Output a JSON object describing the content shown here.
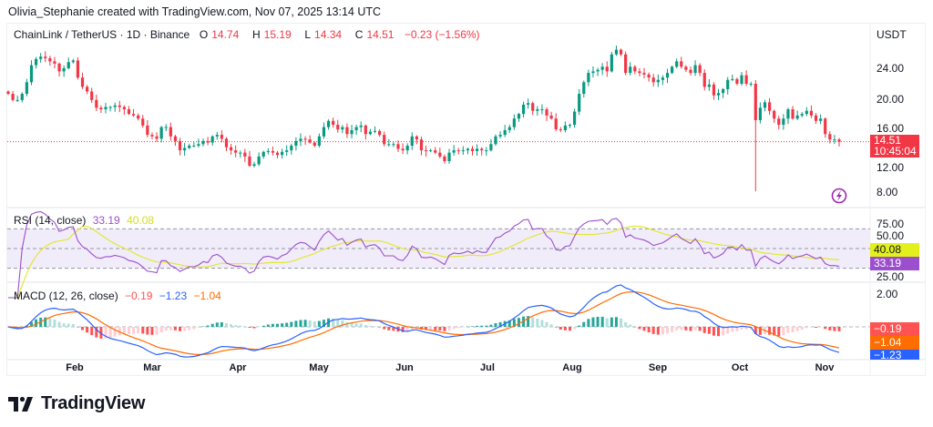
{
  "credit": "Olivia_Stephanie created with TradingView.com, Nov 07, 2025 13:14 UTC",
  "header": {
    "symbol": "ChainLink / TetherUS · 1D · Binance",
    "o_label": "O",
    "o": "14.74",
    "h_label": "H",
    "h": "15.19",
    "l_label": "L",
    "l": "14.34",
    "c_label": "C",
    "c": "14.51",
    "change": "−0.23 (−1.56%)"
  },
  "currency": "USDT",
  "price_tag": {
    "price": "14.51",
    "countdown": "10:45:04"
  },
  "rsi": {
    "label": "RSI (14, close)",
    "value": "33.19",
    "ma": "40.08",
    "ticks": [
      "75.00",
      "50.00",
      "25.00"
    ]
  },
  "macd": {
    "label": "MACD (12, 26, close)",
    "hist": "−0.19",
    "macd": "−1.23",
    "signal": "−1.04",
    "ticks": [
      "2.00"
    ]
  },
  "logo_text": "TradingView",
  "colors": {
    "up": "#089981",
    "down": "#f23645",
    "rsi": "#9c4fcc",
    "rsi_ma": "#e2e832",
    "macd": "#2962ff",
    "signal": "#ff6d00",
    "rsi_band": "#f1ecfa"
  },
  "icons": {
    "alert": "lightning-icon",
    "logo": "tradingview-logo-icon"
  },
  "chart_data": {
    "type": "candlestick",
    "title": "ChainLink / TetherUS · 1D · Binance",
    "x_range": [
      "Jan 10, 2025",
      "Nov 07, 2025"
    ],
    "x_ticks": [
      "Feb",
      "Mar",
      "Apr",
      "May",
      "Jun",
      "Jul",
      "Aug",
      "Sep",
      "Oct",
      "Nov"
    ],
    "y_ticks": [
      "24.00",
      "20.00",
      "16.00",
      "12.00",
      "8.00"
    ],
    "ylim": [
      6.4,
      30.2
    ],
    "grid": false,
    "spike_low": 8.1,
    "closes": [
      20.7,
      19.9,
      19.9,
      20.7,
      22.2,
      24.4,
      25.2,
      25.5,
      25.3,
      24.9,
      24.6,
      23.6,
      24,
      24.8,
      25,
      22.8,
      21.6,
      21,
      19.9,
      18.9,
      18.7,
      19,
      19,
      19.2,
      19,
      18.7,
      18.1,
      17.9,
      17.5,
      16.6,
      15.4,
      15.2,
      14.9,
      16.4,
      16.4,
      15.2,
      14.6,
      13.4,
      13.7,
      14,
      14,
      14.2,
      14.6,
      14.4,
      15.2,
      15.4,
      14.9,
      13.8,
      13.4,
      13.1,
      13.1,
      12.6,
      11.4,
      11.6,
      12.6,
      13.2,
      13.3,
      13.1,
      12.8,
      13.2,
      13.4,
      14,
      14.6,
      14.9,
      14.8,
      14.4,
      14,
      15.2,
      16.4,
      17.2,
      16.7,
      16.1,
      16.4,
      15.5,
      16,
      16.4,
      16.6,
      15.5,
      15.8,
      15.9,
      15.4,
      14.2,
      14.2,
      14.2,
      13.6,
      13.4,
      14,
      15.2,
      14.8,
      13.4,
      13.3,
      13.4,
      13.1,
      12.6,
      12,
      13.1,
      13.4,
      13.3,
      13.4,
      13.6,
      13.3,
      13.6,
      13.4,
      13.4,
      14.2,
      15.2,
      15.4,
      16,
      16.4,
      17.5,
      18.1,
      19.3,
      19.5,
      18.5,
      18.7,
      18.7,
      17.9,
      17.5,
      16.1,
      16,
      16.6,
      16.7,
      18.4,
      20.7,
      22.2,
      23.4,
      23.6,
      23.8,
      24.2,
      23.6,
      25.8,
      26.4,
      25.8,
      23.4,
      24.2,
      23.6,
      23.4,
      23.2,
      22.8,
      22.2,
      22.5,
      22.8,
      23.4,
      24.2,
      24.9,
      24.2,
      23.8,
      23.4,
      24.4,
      23.4,
      21.6,
      21.9,
      20.5,
      20.8,
      21.3,
      22.5,
      22.6,
      22,
      23.1,
      22,
      22,
      17.3,
      18.9,
      19.6,
      18.5,
      17.5,
      16.7,
      17.5,
      18.7,
      17.5,
      17.9,
      18.1,
      18.5,
      17.9,
      17.2,
      17.5,
      15.5,
      14.8,
      14.8,
      14.51
    ],
    "indicators": [
      {
        "name": "RSI (14, close)",
        "last": 33.19,
        "ma_last": 40.08,
        "ylim": [
          25,
          75
        ],
        "bands": [
          70,
          50,
          30
        ]
      },
      {
        "name": "MACD (12, 26, close)",
        "macd_last": -1.23,
        "signal_last": -1.04,
        "hist_last": -0.19
      }
    ]
  }
}
